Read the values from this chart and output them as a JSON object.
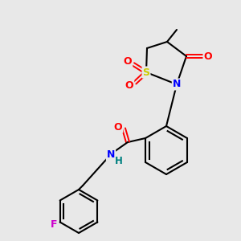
{
  "background_color": "#e8e8e8",
  "bond_color": "#000000",
  "atom_colors": {
    "N": "#0000ff",
    "O": "#ff0000",
    "S": "#cccc00",
    "F": "#cc00cc",
    "H": "#008080",
    "C": "#000000"
  },
  "figsize": [
    3.0,
    3.0
  ],
  "dpi": 100
}
